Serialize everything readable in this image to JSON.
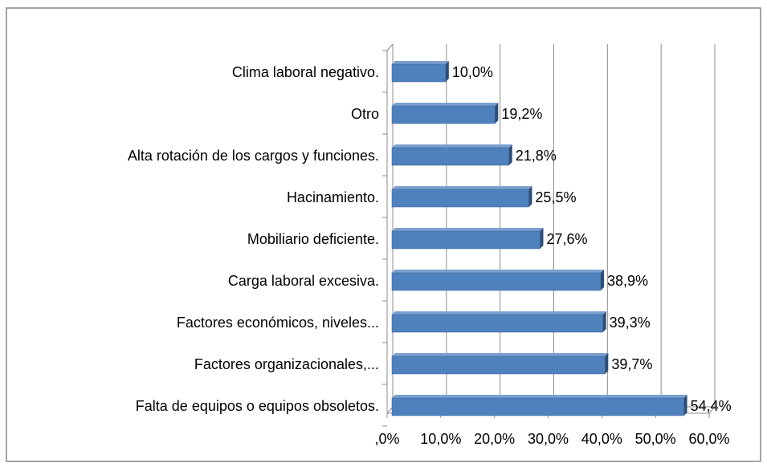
{
  "chart_data": {
    "type": "bar",
    "orientation": "horizontal",
    "categories": [
      "Clima laboral negativo.",
      "Otro",
      "Alta rotación de los cargos y funciones.",
      "Hacinamiento.",
      "Mobiliario deficiente.",
      "Carga laboral excesiva.",
      "Factores económicos, niveles...",
      "Factores organizacionales,...",
      "Falta de equipos o equipos obsoletos."
    ],
    "values": [
      10.0,
      19.2,
      21.8,
      25.5,
      27.6,
      38.9,
      39.3,
      39.7,
      54.4
    ],
    "value_labels": [
      "10,0%",
      "19,2%",
      "21,8%",
      "25,5%",
      "27,6%",
      "38,9%",
      "39,3%",
      "39,7%",
      "54,4%"
    ],
    "color": "#4f81bd",
    "xlim": [
      0,
      60
    ],
    "xticks": [
      {
        "value": 0,
        "label": ",0%"
      },
      {
        "value": 10,
        "label": "10,0%"
      },
      {
        "value": 20,
        "label": "20,0%"
      },
      {
        "value": 30,
        "label": "30,0%"
      },
      {
        "value": 40,
        "label": "40,0%"
      },
      {
        "value": 50,
        "label": "50,0%"
      },
      {
        "value": 60,
        "label": "60,0%"
      }
    ],
    "grid": true
  }
}
